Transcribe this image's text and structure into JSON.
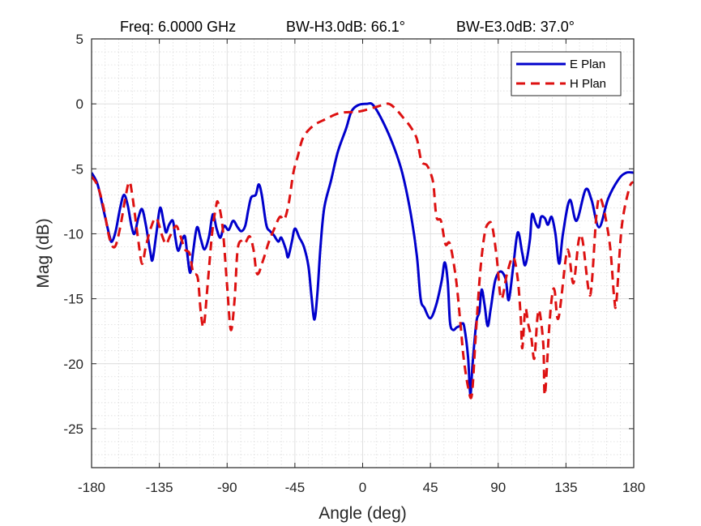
{
  "chart_data": {
    "type": "line",
    "title": "Freq: 6.0000 GHz    BW-H3.0dB: 66.1°    BW-E3.0dB: 37.0°",
    "title_parts": {
      "freq": "Freq: 6.0000 GHz",
      "bw_h": "BW-H3.0dB: 66.1°",
      "bw_e": "BW-E3.0dB: 37.0°"
    },
    "xlabel": "Angle (deg)",
    "ylabel": "Mag (dB)",
    "xlim": [
      -180,
      180
    ],
    "ylim": [
      -28,
      5
    ],
    "xticks": [
      -180,
      -135,
      -90,
      -45,
      0,
      45,
      90,
      135,
      180
    ],
    "yticks": [
      5,
      0,
      -5,
      -10,
      -15,
      -20,
      -25
    ],
    "xtick_labels": [
      "-180",
      "-135",
      "-90",
      "-45",
      "0",
      "45",
      "90",
      "135",
      "180"
    ],
    "ytick_labels": [
      "5",
      "0",
      "-5",
      "-10",
      "-15",
      "-20",
      "-25"
    ],
    "grid": true,
    "minor_grid": true,
    "legend_position": "top-right",
    "series": [
      {
        "name": "E Plan",
        "color": "#0000cc",
        "style": "solid",
        "x": [
          -180,
          -176,
          -172,
          -168,
          -166.5,
          -164,
          -161,
          -158.5,
          -156,
          -153.5,
          -151.5,
          -149,
          -146.5,
          -144,
          -141,
          -139.5,
          -137,
          -134.5,
          -132,
          -130.5,
          -128.5,
          -126,
          -124.5,
          -122.5,
          -120,
          -118,
          -116.5,
          -114.5,
          -112.5,
          -110,
          -107.5,
          -105,
          -102,
          -99.5,
          -97,
          -94.5,
          -92,
          -89,
          -86,
          -83,
          -80.5,
          -78,
          -76,
          -74,
          -71,
          -69,
          -67,
          -64,
          -61.5,
          -59,
          -56,
          -54,
          -51,
          -49.5,
          -47,
          -45,
          -42,
          -39,
          -36,
          -34,
          -32,
          -30,
          -28,
          -25.5,
          -21,
          -16.5,
          -11,
          -7.5,
          -3,
          2.5,
          7,
          14,
          21,
          26.5,
          32,
          36,
          38.5,
          41,
          45,
          49,
          52.5,
          54.5,
          56.5,
          58,
          60,
          62.5,
          64.5,
          66,
          67.5,
          70,
          71.5,
          73,
          75.5,
          77.5,
          79,
          81,
          83,
          85,
          88,
          91.5,
          95,
          97,
          100,
          103,
          106,
          108,
          111,
          112.5,
          115,
          117,
          118.5,
          121,
          123,
          125.5,
          128,
          130.5,
          133,
          137.5,
          142,
          148,
          152,
          157,
          163,
          170,
          175,
          180
        ],
        "y": [
          -5.3,
          -6.2,
          -8.2,
          -10.2,
          -10.6,
          -9.8,
          -8.0,
          -7.0,
          -7.8,
          -9.4,
          -10.0,
          -8.8,
          -8.1,
          -9.3,
          -11.4,
          -12.0,
          -10.0,
          -8.0,
          -9.2,
          -9.9,
          -9.3,
          -9.0,
          -10.2,
          -11.3,
          -10.5,
          -10.2,
          -11.5,
          -13.0,
          -11.3,
          -9.5,
          -10.4,
          -11.2,
          -10.2,
          -8.5,
          -9.6,
          -10.3,
          -9.4,
          -9.7,
          -9.0,
          -9.5,
          -9.8,
          -9.4,
          -8.2,
          -7.2,
          -7.0,
          -6.2,
          -7.0,
          -9.3,
          -9.8,
          -10.1,
          -10.6,
          -10.3,
          -11.2,
          -11.8,
          -10.6,
          -9.6,
          -10.3,
          -11.0,
          -12.5,
          -14.8,
          -16.6,
          -14.5,
          -11.0,
          -8.0,
          -5.9,
          -3.7,
          -1.9,
          -0.6,
          -0.1,
          0.0,
          -0.1,
          -1.5,
          -3.4,
          -5.4,
          -8.5,
          -11.7,
          -15.0,
          -15.7,
          -16.5,
          -15.4,
          -13.6,
          -12.2,
          -13.7,
          -16.8,
          -17.4,
          -17.2,
          -17.1,
          -16.9,
          -17.2,
          -19.5,
          -22.4,
          -20.0,
          -16.8,
          -16.0,
          -14.3,
          -15.5,
          -17.1,
          -15.8,
          -13.6,
          -12.9,
          -13.5,
          -15.1,
          -12.5,
          -9.9,
          -11.5,
          -12.4,
          -10.5,
          -8.5,
          -9.2,
          -9.5,
          -8.7,
          -8.8,
          -9.3,
          -8.7,
          -10.0,
          -12.3,
          -10.0,
          -7.4,
          -9.0,
          -6.6,
          -7.4,
          -9.5,
          -7.3,
          -5.8,
          -5.3,
          -5.3
        ]
      },
      {
        "name": "H Plan",
        "color": "#dd1111",
        "style": "dashed",
        "x": [
          -180,
          -176,
          -172,
          -168,
          -164.5,
          -161,
          -157.5,
          -155,
          -153,
          -149,
          -146.5,
          -144,
          -140.5,
          -137,
          -133,
          -130.5,
          -128,
          -124,
          -121.5,
          -118,
          -115,
          -112.5,
          -109.5,
          -107.5,
          -105.5,
          -103,
          -100,
          -97.5,
          -96,
          -93,
          -90,
          -87.5,
          -85,
          -83,
          -80,
          -78,
          -75,
          -72.5,
          -70,
          -66,
          -62.5,
          -59,
          -55,
          -52,
          -49,
          -46,
          -43,
          -39.5,
          -33,
          -25,
          -15,
          -3,
          7,
          13,
          17.5,
          22,
          26.5,
          32,
          36,
          39,
          42.5,
          45,
          47,
          49,
          52,
          55,
          58,
          62,
          65,
          67,
          70,
          72.5,
          75,
          78,
          81,
          83.5,
          86,
          89,
          92,
          96,
          100,
          103,
          105,
          106,
          108,
          110,
          112,
          114,
          116,
          117.5,
          120,
          121,
          124,
          126,
          127.5,
          130,
          135,
          137,
          140,
          143.5,
          146,
          150,
          152,
          155.5,
          158.5,
          164,
          167,
          168.5,
          172,
          177,
          180
        ],
        "y": [
          -5.6,
          -6.3,
          -8.0,
          -10.4,
          -11.0,
          -9.5,
          -7.2,
          -6.0,
          -7.0,
          -10.5,
          -12.3,
          -11.0,
          -9.5,
          -8.8,
          -10.2,
          -10.8,
          -10.2,
          -9.4,
          -10.0,
          -11.2,
          -11.5,
          -13.0,
          -13.4,
          -16.0,
          -17.1,
          -14.0,
          -10.0,
          -8.0,
          -7.6,
          -9.5,
          -14.0,
          -17.4,
          -15.0,
          -11.2,
          -10.5,
          -10.7,
          -10.2,
          -11.2,
          -13.1,
          -12.0,
          -10.7,
          -9.7,
          -8.7,
          -8.9,
          -7.6,
          -5.3,
          -4.0,
          -2.6,
          -1.7,
          -1.2,
          -0.7,
          -0.6,
          -0.3,
          -0.1,
          0.0,
          -0.4,
          -1.0,
          -1.8,
          -2.7,
          -4.4,
          -4.7,
          -5.3,
          -6.2,
          -8.7,
          -9.0,
          -10.8,
          -10.8,
          -13.5,
          -17.0,
          -19.5,
          -21.8,
          -22.4,
          -18.0,
          -13.0,
          -10.0,
          -9.2,
          -9.4,
          -11.8,
          -15.0,
          -13.0,
          -11.8,
          -13.5,
          -16.5,
          -18.8,
          -15.8,
          -17.0,
          -18.0,
          -19.6,
          -16.5,
          -16.0,
          -18.6,
          -22.4,
          -17.0,
          -14.6,
          -14.4,
          -16.5,
          -11.8,
          -11.5,
          -13.8,
          -10.5,
          -10.5,
          -14.3,
          -14.0,
          -8.2,
          -7.4,
          -10.7,
          -14.9,
          -15.2,
          -9.5,
          -6.5,
          -6.0
        ]
      }
    ]
  }
}
